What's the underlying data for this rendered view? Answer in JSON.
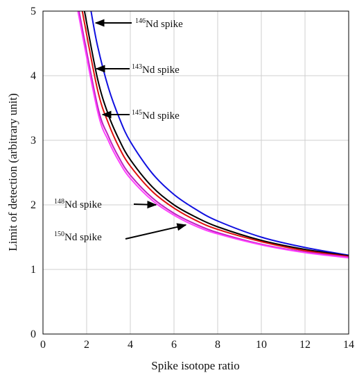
{
  "chart_data": {
    "type": "line",
    "xlabel": "Spike isotope ratio",
    "ylabel": "Limit of detection (arbitrary unit)",
    "xlim": [
      0,
      14
    ],
    "ylim": [
      0,
      5
    ],
    "xticks": [
      0,
      2,
      4,
      6,
      8,
      10,
      12,
      14
    ],
    "yticks": [
      0,
      1,
      2,
      3,
      4,
      5
    ],
    "grid": true,
    "series": [
      {
        "color": "#1010e0",
        "x": [
          2.2,
          2.5,
          3,
          3.5,
          4,
          5,
          6,
          7,
          8,
          10,
          12,
          14
        ],
        "values": [
          5.0,
          4.46,
          3.81,
          3.34,
          2.98,
          2.49,
          2.16,
          1.93,
          1.75,
          1.5,
          1.34,
          1.22
        ]
      },
      {
        "color": "#000000",
        "x": [
          1.9,
          2.5,
          3,
          3.5,
          4,
          5,
          6,
          7,
          8,
          10,
          12,
          14
        ],
        "values": [
          5.0,
          3.95,
          3.39,
          3.0,
          2.7,
          2.28,
          2.0,
          1.81,
          1.66,
          1.45,
          1.31,
          1.21
        ]
      },
      {
        "color": "#e01010",
        "x": [
          1.8,
          2.5,
          3,
          3.5,
          4,
          5,
          6,
          7,
          8,
          10,
          12,
          14
        ],
        "values": [
          5.0,
          3.78,
          3.26,
          2.88,
          2.6,
          2.21,
          1.95,
          1.76,
          1.62,
          1.43,
          1.29,
          1.2
        ]
      },
      {
        "color": "#c020c0",
        "x": [
          1.65,
          2.5,
          3,
          3.5,
          4,
          5,
          6,
          7,
          8,
          10,
          12,
          14
        ],
        "values": [
          5.0,
          3.53,
          3.06,
          2.72,
          2.46,
          2.11,
          1.87,
          1.7,
          1.57,
          1.39,
          1.27,
          1.19
        ]
      },
      {
        "color": "#ff40ff",
        "x": [
          1.6,
          2.5,
          3,
          3.5,
          4,
          5,
          6,
          7,
          8,
          10,
          12,
          14
        ],
        "values": [
          5.0,
          3.45,
          2.99,
          2.66,
          2.41,
          2.07,
          1.84,
          1.67,
          1.55,
          1.38,
          1.26,
          1.18
        ]
      }
    ],
    "annotations": [
      {
        "sup": "146",
        "text": "Nd spike"
      },
      {
        "sup": "143",
        "text": "Nd spike"
      },
      {
        "sup": "145",
        "text": "Nd spike"
      },
      {
        "sup": "148",
        "text": "Nd spike"
      },
      {
        "sup": "150",
        "text": "Nd spike"
      }
    ]
  }
}
